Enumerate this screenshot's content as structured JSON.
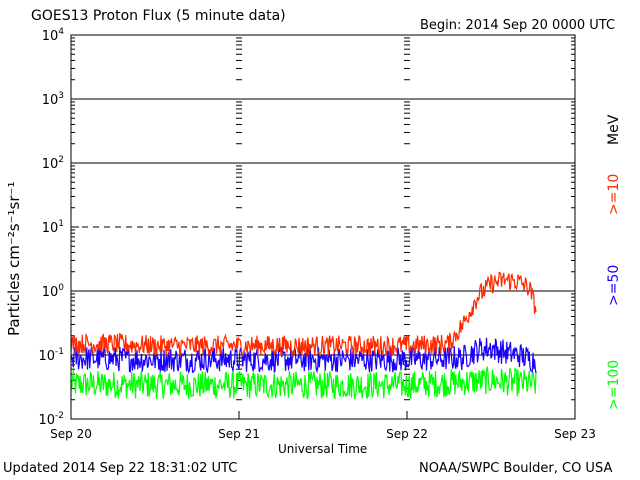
{
  "title": "GOES13 Proton Flux (5 minute data)",
  "begin_label": "Begin: 2014 Sep 20 0000 UTC",
  "updated_label": "Updated 2014 Sep 22 18:31:02 UTC",
  "credit_label": "NOAA/SWPC Boulder, CO USA",
  "chart_data": {
    "type": "line",
    "title": "GOES13 Proton Flux (5 minute data)",
    "xlabel": "Universal Time",
    "ylabel": "Particles cm⁻²s⁻¹sr⁻¹",
    "yscale": "log",
    "ylim": [
      0.01,
      10000
    ],
    "xlim": [
      "2014-09-20 00:00",
      "2014-09-23 00:00"
    ],
    "x_ticks": [
      "Sep 20",
      "Sep 21",
      "Sep 22",
      "Sep 23"
    ],
    "y_ticks": [
      {
        "base": "10",
        "exp": "-2"
      },
      {
        "base": "10",
        "exp": "-1"
      },
      {
        "base": "10",
        "exp": "0"
      },
      {
        "base": "10",
        "exp": "1"
      },
      {
        "base": "10",
        "exp": "2"
      },
      {
        "base": "10",
        "exp": "3"
      },
      {
        "base": "10",
        "exp": "4"
      }
    ],
    "threshold_lines": [
      {
        "y": 0.1,
        "style": "solid"
      },
      {
        "y": 1,
        "style": "solid"
      },
      {
        "y": 10,
        "style": "dashed"
      },
      {
        "y": 100,
        "style": "solid"
      },
      {
        "y": 1000,
        "style": "solid"
      }
    ],
    "legend_unit": "MeV",
    "series": [
      {
        "name": ">=10",
        "color": "#ff2a00",
        "x": [
          "2014-09-20 00:00",
          "2014-09-20 06:00",
          "2014-09-20 12:00",
          "2014-09-20 18:00",
          "2014-09-21 00:00",
          "2014-09-21 06:00",
          "2014-09-21 12:00",
          "2014-09-21 18:00",
          "2014-09-22 00:00",
          "2014-09-22 06:00",
          "2014-09-22 08:00",
          "2014-09-22 10:00",
          "2014-09-22 12:00",
          "2014-09-22 14:00",
          "2014-09-22 16:00",
          "2014-09-22 17:30",
          "2014-09-22 18:30"
        ],
        "y": [
          0.15,
          0.15,
          0.14,
          0.14,
          0.14,
          0.14,
          0.14,
          0.14,
          0.14,
          0.15,
          0.3,
          0.8,
          1.3,
          1.5,
          1.4,
          1.1,
          0.5
        ]
      },
      {
        "name": ">=50",
        "color": "#1a00ff",
        "x": [
          "2014-09-20 00:00",
          "2014-09-20 12:00",
          "2014-09-21 00:00",
          "2014-09-21 12:00",
          "2014-09-22 00:00",
          "2014-09-22 08:00",
          "2014-09-22 10:00",
          "2014-09-22 12:00",
          "2014-09-22 14:00",
          "2014-09-22 16:00",
          "2014-09-22 18:30"
        ],
        "y": [
          0.09,
          0.085,
          0.085,
          0.085,
          0.085,
          0.09,
          0.12,
          0.13,
          0.11,
          0.1,
          0.08
        ]
      },
      {
        "name": ">=100",
        "color": "#00ff00",
        "x": [
          "2014-09-20 00:00",
          "2014-09-20 12:00",
          "2014-09-21 00:00",
          "2014-09-21 12:00",
          "2014-09-22 00:00",
          "2014-09-22 12:00",
          "2014-09-22 18:30"
        ],
        "y": [
          0.035,
          0.034,
          0.034,
          0.034,
          0.034,
          0.04,
          0.035
        ]
      }
    ]
  }
}
